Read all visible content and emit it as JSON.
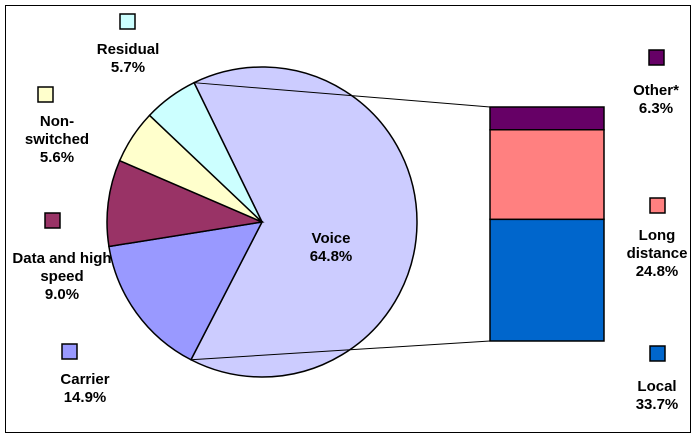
{
  "chart_data": {
    "type": "pie",
    "categories": [
      "Voice",
      "Carrier",
      "Data and high speed",
      "Non-switched",
      "Residual"
    ],
    "values": [
      64.8,
      14.9,
      9.0,
      5.6,
      5.7
    ],
    "value_labels": [
      "64.8%",
      "14.9%",
      "9.0%",
      "5.6%",
      "5.7%"
    ],
    "colors": [
      "#ccccff",
      "#9999ff",
      "#993366",
      "#ffffcc",
      "#ccffff"
    ],
    "breakdown": {
      "type": "bar",
      "categories": [
        "Local",
        "Long distance",
        "Other*"
      ],
      "values": [
        33.7,
        24.8,
        6.3
      ],
      "value_labels": [
        "33.7%",
        "24.8%",
        "6.3%"
      ],
      "colors": [
        "#0066cc",
        "#ff8080",
        "#660066"
      ]
    }
  }
}
